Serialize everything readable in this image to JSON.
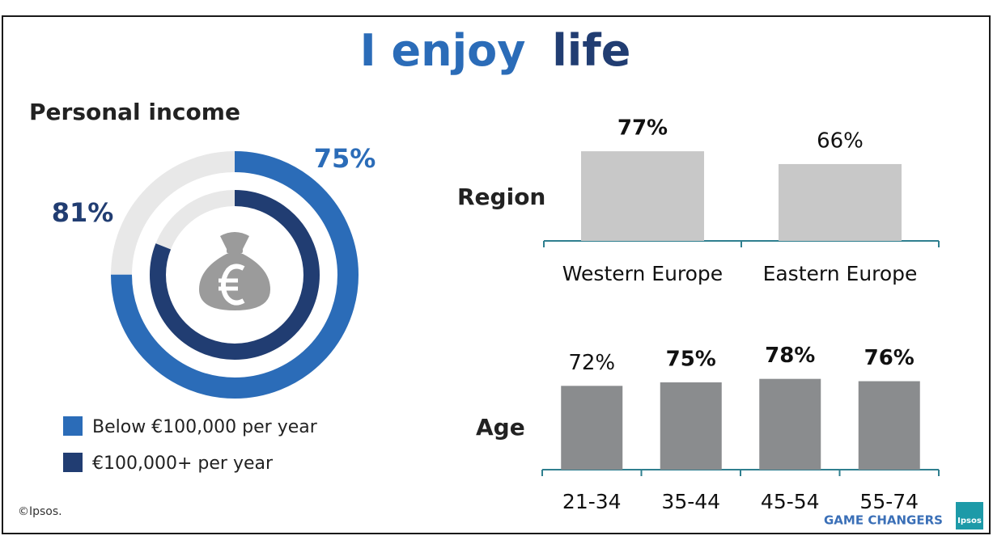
{
  "title": [
    "I enjoy",
    "life"
  ],
  "chart_data": [
    {
      "type": "donut",
      "title": "Personal income",
      "series": [
        {
          "name": "Below €100,000 per year",
          "color": "#2b6cb8",
          "values": [
            75
          ],
          "value_labels": [
            "75%"
          ]
        },
        {
          "name": "€100,000+ per year",
          "color": "#213d72",
          "values": [
            81
          ],
          "value_labels": [
            "81%"
          ]
        }
      ],
      "track_color": "#e8e8e8"
    },
    {
      "type": "bar",
      "title": "Region",
      "categories": [
        "Western Europe",
        "Eastern Europe"
      ],
      "values": [
        77,
        66
      ],
      "value_labels": [
        "77%",
        "66%"
      ],
      "bold_value_labels": [
        true,
        false
      ],
      "color": "#c8c8c8"
    },
    {
      "type": "bar",
      "title": "Age",
      "categories": [
        "21-34",
        "35-44",
        "45-54",
        "55-74"
      ],
      "values": [
        72,
        75,
        78,
        76
      ],
      "value_labels": [
        "72%",
        "75%",
        "78%",
        "76%"
      ],
      "bold_value_labels": [
        false,
        true,
        true,
        true
      ],
      "color": "#8a8c8e"
    }
  ],
  "footer": {
    "copyright": "©Ipsos.",
    "tagline": "GAME CHANGERS",
    "logo": "Ipsos"
  }
}
